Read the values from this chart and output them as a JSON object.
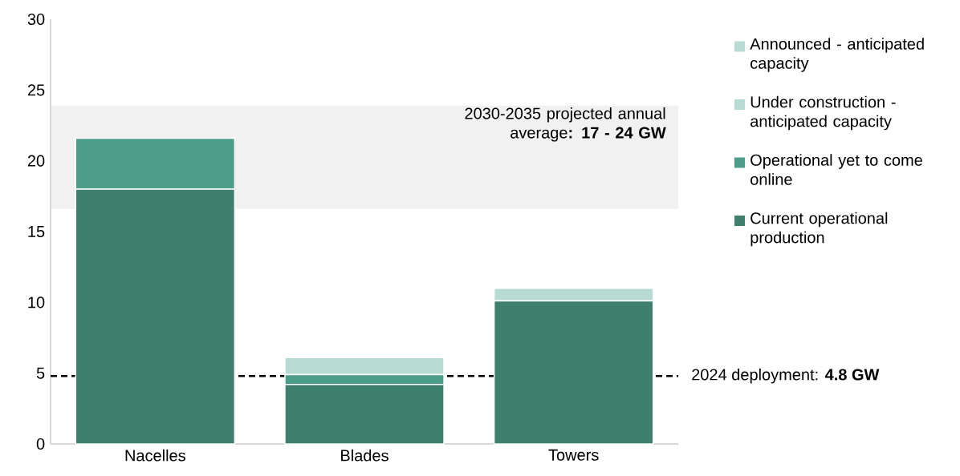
{
  "chart_data": {
    "type": "bar",
    "stacked": true,
    "categories": [
      "Nacelles",
      "Blades",
      "Towers"
    ],
    "series": [
      {
        "name": "Current operational production",
        "color": "#3e7f6e",
        "values": [
          18.0,
          4.2,
          10.1
        ]
      },
      {
        "name": "Operational yet to come online",
        "color": "#4c9e8a",
        "values": [
          3.6,
          0.7,
          null
        ]
      },
      {
        "name": "Under construction - anticipated capacity",
        "color": "#b7dbd3",
        "values": [
          null,
          1.2,
          0.9
        ]
      },
      {
        "name": "Announced - anticipated capacity",
        "color": "#b7dbd3",
        "values": [
          null,
          null,
          null
        ]
      }
    ],
    "ylim": [
      0,
      30
    ],
    "yticks": [
      0,
      5,
      10,
      15,
      20,
      25,
      30
    ],
    "ref_lines": [
      {
        "axis": "y",
        "value": 4.8,
        "label": "2024 deployment: **4.8 GW**",
        "color": "#000000",
        "line_style": "dashed"
      }
    ],
    "bands": [
      {
        "axis": "y",
        "from": 16.6,
        "to": 23.9,
        "label": "2030-2035 projected annual average**: 17 - 24 GW**",
        "color": "#f1f1f1"
      }
    ],
    "legend": "right"
  }
}
